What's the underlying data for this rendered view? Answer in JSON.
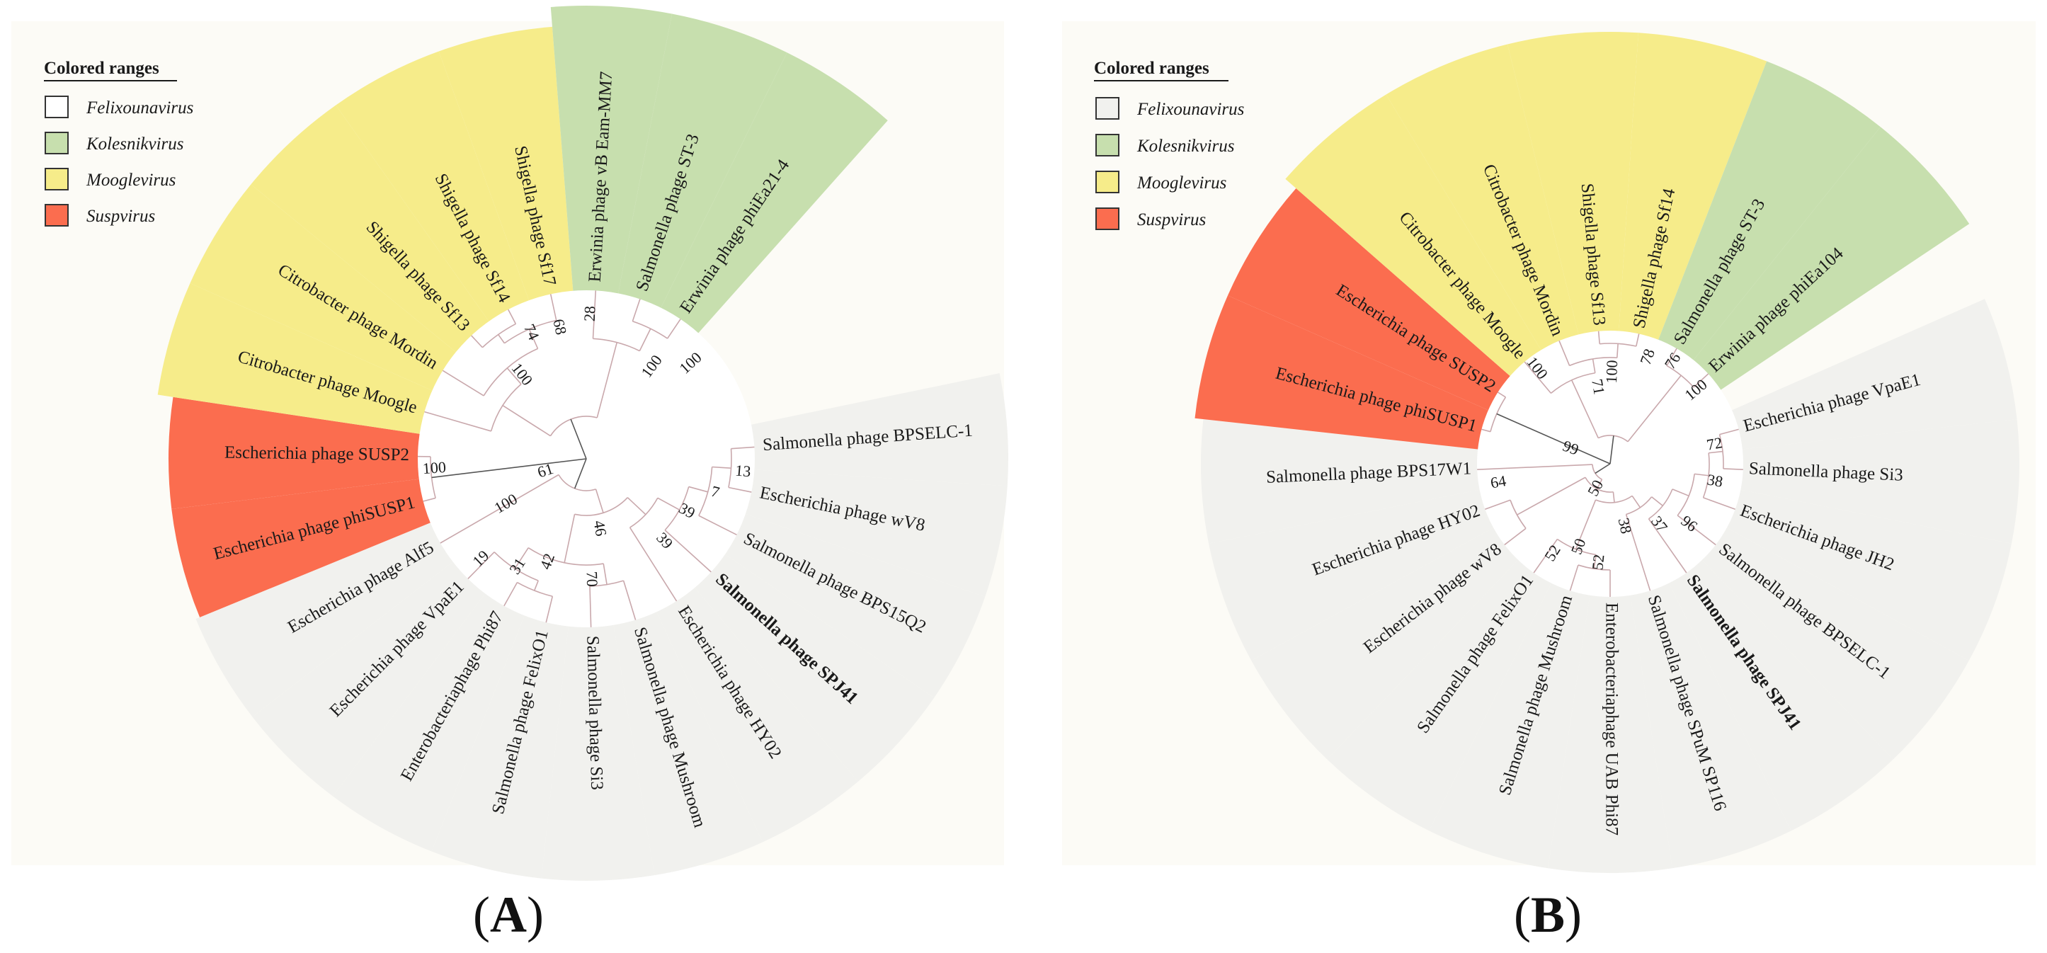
{
  "colors": {
    "Felixounavirus": "#f1f1ee",
    "Kolesnikvirus": "#c7dfae",
    "Mooglevirus": "#f6ec8a",
    "Suspvirus": "#fb6d4f",
    "panel_background": "#fcfbf6",
    "label_background": "#ffffff"
  },
  "legend": {
    "title": "Colored ranges",
    "items": [
      {
        "genus": "Felixounavirus",
        "label": "Felixounavirus"
      },
      {
        "genus": "Kolesnikvirus",
        "label": "Kolesnikvirus"
      },
      {
        "genus": "Mooglevirus",
        "label": "Mooglevirus"
      },
      {
        "genus": "Suspvirus",
        "label": "Suspvirus"
      }
    ]
  },
  "panels": [
    {
      "id": "A",
      "label_open": "(",
      "label_letter": "A",
      "label_close": ")",
      "tips": [
        {
          "name": "Salmonella phage BPSELC-1",
          "genus": "Felixounavirus"
        },
        {
          "name": "Escherichia phage wV8",
          "genus": "Felixounavirus"
        },
        {
          "name": "Salmonella phage BPS15Q2",
          "genus": "Felixounavirus"
        },
        {
          "name": "Salmonella phage SPJ41",
          "genus": "Felixounavirus",
          "bold": true
        },
        {
          "name": "Escherichia phage HY02",
          "genus": "Felixounavirus"
        },
        {
          "name": "Salmonella phage Mushroom",
          "genus": "Felixounavirus"
        },
        {
          "name": "Salmonella phage Si3",
          "genus": "Felixounavirus"
        },
        {
          "name": "Salmonella phage FelixO1",
          "genus": "Felixounavirus"
        },
        {
          "name": "Enterobacteriaphage Phi87",
          "genus": "Felixounavirus"
        },
        {
          "name": "Escherichia phage VpaE1",
          "genus": "Felixounavirus"
        },
        {
          "name": "Escherichia phage Alf5",
          "genus": "Felixounavirus"
        },
        {
          "name": "Escherichia phage phiSUSP1",
          "genus": "Suspvirus"
        },
        {
          "name": "Escherichia phage SUSP2",
          "genus": "Suspvirus"
        },
        {
          "name": "Citrobacter phage Moogle",
          "genus": "Mooglevirus"
        },
        {
          "name": "Citrobacter phage Mordin",
          "genus": "Mooglevirus"
        },
        {
          "name": "Shigella phage Sf13",
          "genus": "Mooglevirus"
        },
        {
          "name": "Shigella phage Sf14",
          "genus": "Mooglevirus"
        },
        {
          "name": "Shigella phage Sf17",
          "genus": "Mooglevirus"
        },
        {
          "name": "Erwinia phage vB Eam-MM7",
          "genus": "Kolesnikvirus"
        },
        {
          "name": "Salmonella phage ST-3",
          "genus": "Kolesnikvirus"
        },
        {
          "name": "Erwinia phage phiEa21-4",
          "genus": "Kolesnikvirus"
        }
      ],
      "bootstrap": [
        "13",
        "7",
        "39",
        "39",
        "46",
        "70",
        "42",
        "31",
        "19",
        "100",
        "61",
        "100",
        "100",
        "74",
        "68",
        "28",
        "100",
        "100"
      ]
    },
    {
      "id": "B",
      "label_open": "(",
      "label_letter": "B",
      "label_close": ")",
      "tips": [
        {
          "name": "Escherichia phage VpaE1",
          "genus": "Felixounavirus"
        },
        {
          "name": "Salmonella phage Si3",
          "genus": "Felixounavirus"
        },
        {
          "name": "Escherichia phage JH2",
          "genus": "Felixounavirus"
        },
        {
          "name": "Salmonella phage BPSELC-1",
          "genus": "Felixounavirus"
        },
        {
          "name": "Salmonella phage SPJ41",
          "genus": "Felixounavirus",
          "bold": true
        },
        {
          "name": "Salmonella phage SPuM SP116",
          "genus": "Felixounavirus"
        },
        {
          "name": "Enterobacteriaphage UAB Phi87",
          "genus": "Felixounavirus"
        },
        {
          "name": "Salmonella phage Mushroom",
          "genus": "Felixounavirus"
        },
        {
          "name": "Salmonella phage FelixO1",
          "genus": "Felixounavirus"
        },
        {
          "name": "Escherichia phage wV8",
          "genus": "Felixounavirus"
        },
        {
          "name": "Escherichia phage HY02",
          "genus": "Felixounavirus"
        },
        {
          "name": "Salmonella phage BPS17W1",
          "genus": "Felixounavirus"
        },
        {
          "name": "Escherichia phage phiSUSP1",
          "genus": "Suspvirus"
        },
        {
          "name": "Escherichia phage SUSP2",
          "genus": "Suspvirus"
        },
        {
          "name": "Citrobacter phage Moogle",
          "genus": "Mooglevirus"
        },
        {
          "name": "Citrobacter phage Mordin",
          "genus": "Mooglevirus"
        },
        {
          "name": "Shigella phage Sf13",
          "genus": "Mooglevirus"
        },
        {
          "name": "Shigella phage Sf14",
          "genus": "Mooglevirus"
        },
        {
          "name": "Salmonella phage ST-3",
          "genus": "Kolesnikvirus"
        },
        {
          "name": "Erwinia phage phiEa104",
          "genus": "Kolesnikvirus"
        }
      ],
      "bootstrap": [
        "72",
        "38",
        "96",
        "37",
        "38",
        "52",
        "50",
        "52",
        "50",
        "64",
        "99",
        "100",
        "71",
        "100",
        "78",
        "76",
        "100"
      ]
    }
  ]
}
